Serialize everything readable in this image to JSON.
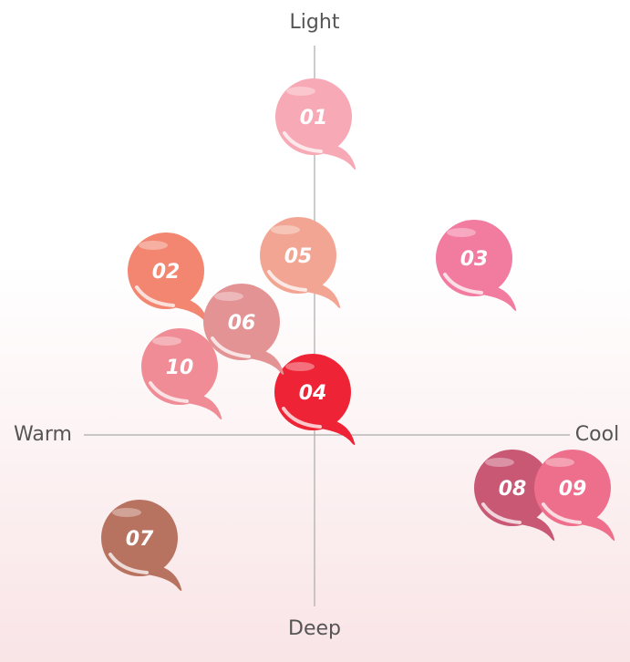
{
  "axes": {
    "top": "Light",
    "bottom": "Deep",
    "left": "Warm",
    "right": "Cool"
  },
  "nodes": [
    {
      "label": "01",
      "color": "#f7a9b5"
    },
    {
      "label": "02",
      "color": "#f28670"
    },
    {
      "label": "03",
      "color": "#f27ba0"
    },
    {
      "label": "04",
      "color": "#ee2436"
    },
    {
      "label": "05",
      "color": "#f3a593"
    },
    {
      "label": "06",
      "color": "#e49394"
    },
    {
      "label": "07",
      "color": "#b87260"
    },
    {
      "label": "08",
      "color": "#c85874"
    },
    {
      "label": "09",
      "color": "#ee6f8c"
    },
    {
      "label": "10",
      "color": "#f08c95"
    }
  ]
}
